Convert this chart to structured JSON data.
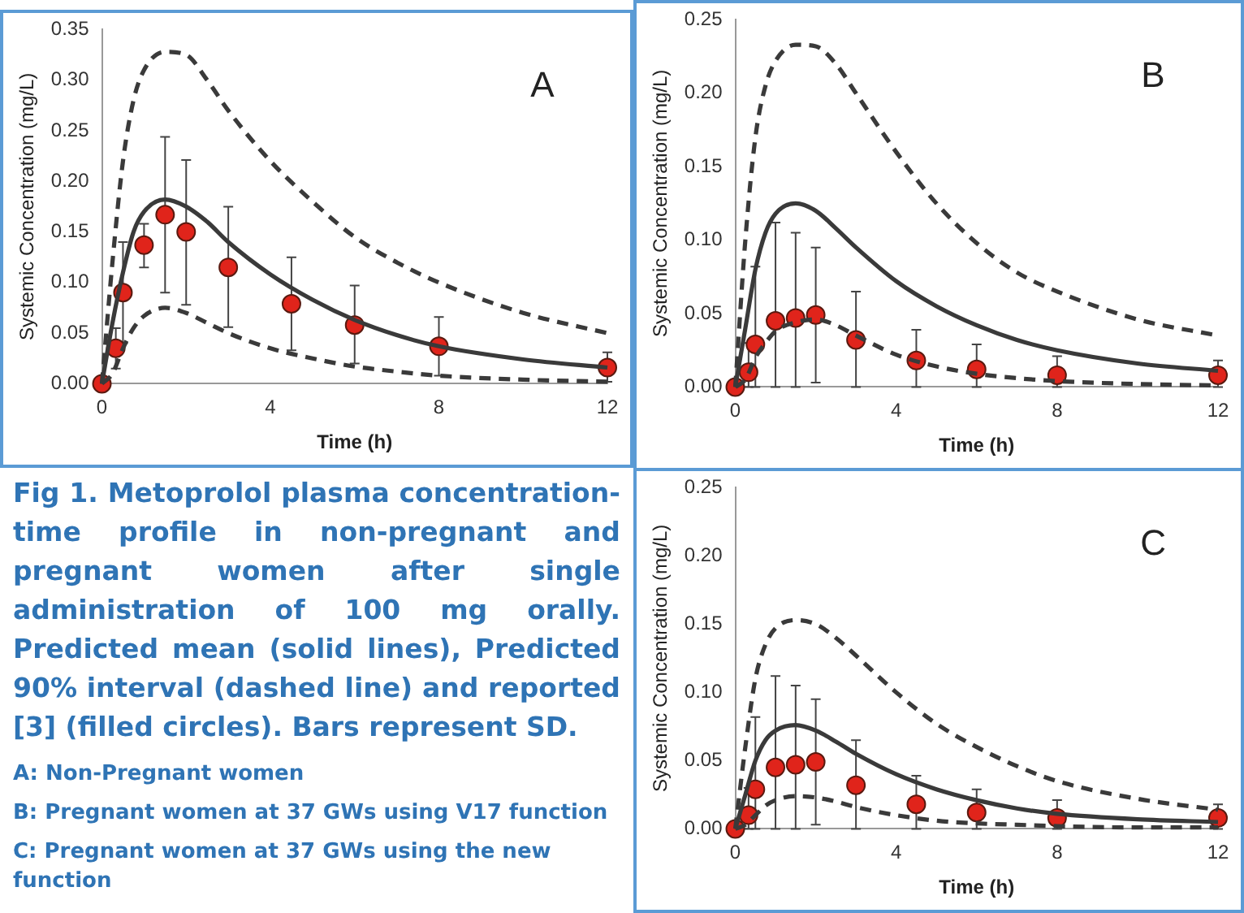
{
  "chart_data": [
    {
      "type": "line",
      "xlabel": "Time (h)",
      "ylabel": "Systemic Concentration (mg/L)",
      "annotations": [
        "A"
      ],
      "xlim": [
        0,
        12
      ],
      "xticks": [
        0,
        4,
        8,
        12
      ],
      "ylim": [
        0,
        0.35
      ],
      "yticks": [
        {
          "value": 0,
          "label": "0.00"
        },
        {
          "value": 0.05,
          "label": "0.05"
        },
        {
          "value": 0.1,
          "label": "0.10"
        },
        {
          "value": 0.15,
          "label": "0.15"
        },
        {
          "value": 0.2,
          "label": "0.20"
        },
        {
          "value": 0.25,
          "label": "0.25"
        },
        {
          "value": 0.3,
          "label": "0.30"
        },
        {
          "value": 0.35,
          "label": "0.35"
        }
      ],
      "grid": false,
      "legend": false,
      "series": [
        {
          "type": "line",
          "color": "#3a3a3a",
          "line_style": "solid",
          "marker": "none",
          "x": [
            0,
            0.25,
            0.5,
            0.75,
            1,
            1.5,
            2,
            2.5,
            3,
            4,
            5,
            6,
            7,
            8,
            10,
            12
          ],
          "values": [
            0,
            0.06,
            0.11,
            0.15,
            0.17,
            0.182,
            0.175,
            0.16,
            0.14,
            0.108,
            0.083,
            0.063,
            0.048,
            0.037,
            0.024,
            0.016
          ]
        },
        {
          "type": "line",
          "color": "#3a3a3a",
          "line_style": "dashed",
          "marker": "none",
          "x": [
            0,
            0.25,
            0.5,
            0.75,
            1,
            1.5,
            2,
            2.5,
            3,
            4,
            5,
            6,
            7,
            8,
            10,
            12
          ],
          "values": [
            0,
            0.12,
            0.22,
            0.28,
            0.31,
            0.328,
            0.325,
            0.3,
            0.27,
            0.22,
            0.18,
            0.145,
            0.12,
            0.1,
            0.07,
            0.05
          ]
        },
        {
          "type": "line",
          "color": "#3a3a3a",
          "line_style": "dashed",
          "marker": "none",
          "x": [
            0,
            0.25,
            0.5,
            0.75,
            1,
            1.5,
            2,
            2.5,
            3,
            4,
            5,
            6,
            7,
            8,
            10,
            12
          ],
          "values": [
            0,
            0.01,
            0.035,
            0.055,
            0.067,
            0.075,
            0.07,
            0.06,
            0.05,
            0.035,
            0.025,
            0.017,
            0.012,
            0.008,
            0.004,
            0.002
          ]
        },
        {
          "type": "scatter",
          "color": "#e0241b",
          "marker": "circle",
          "x": [
            0,
            0.33,
            0.5,
            1,
            1.5,
            2,
            3,
            4.5,
            6,
            8,
            12
          ],
          "values": [
            0,
            0.035,
            0.09,
            0.137,
            0.167,
            0.15,
            0.115,
            0.079,
            0.058,
            0.037,
            0.016
          ],
          "errors": [
            null,
            [
              0.015,
              0.055
            ],
            [
              0.04,
              0.14
            ],
            [
              0.115,
              0.158
            ],
            [
              0.09,
              0.244
            ],
            [
              0.078,
              0.221
            ],
            [
              0.056,
              0.175
            ],
            [
              0.033,
              0.125
            ],
            [
              0.02,
              0.097
            ],
            [
              0.008,
              0.066
            ],
            [
              0.002,
              0.031
            ]
          ]
        }
      ]
    },
    {
      "type": "line",
      "xlabel": "Time (h)",
      "ylabel": "Systemic Concentration (mg/L)",
      "annotations": [
        "B"
      ],
      "xlim": [
        0,
        12
      ],
      "xticks": [
        0,
        4,
        8,
        12
      ],
      "ylim": [
        0,
        0.25
      ],
      "yticks": [
        {
          "value": 0,
          "label": "0.00"
        },
        {
          "value": 0.05,
          "label": "0.05"
        },
        {
          "value": 0.1,
          "label": "0.10"
        },
        {
          "value": 0.15,
          "label": "0.15"
        },
        {
          "value": 0.2,
          "label": "0.20"
        },
        {
          "value": 0.25,
          "label": "0.25"
        }
      ],
      "grid": false,
      "legend": false,
      "series": [
        {
          "type": "line",
          "color": "#3a3a3a",
          "line_style": "solid",
          "marker": "none",
          "x": [
            0,
            0.25,
            0.5,
            0.75,
            1,
            1.5,
            2,
            2.5,
            3,
            4,
            5,
            6,
            7,
            8,
            10,
            12
          ],
          "values": [
            0,
            0.04,
            0.08,
            0.105,
            0.118,
            0.125,
            0.12,
            0.108,
            0.095,
            0.072,
            0.055,
            0.042,
            0.032,
            0.025,
            0.016,
            0.011
          ]
        },
        {
          "type": "line",
          "color": "#3a3a3a",
          "line_style": "dashed",
          "marker": "none",
          "x": [
            0,
            0.25,
            0.5,
            0.75,
            1,
            1.5,
            2,
            2.5,
            3,
            4,
            5,
            6,
            7,
            8,
            10,
            12
          ],
          "values": [
            0,
            0.1,
            0.17,
            0.205,
            0.222,
            0.233,
            0.232,
            0.22,
            0.2,
            0.16,
            0.125,
            0.098,
            0.078,
            0.065,
            0.046,
            0.035
          ]
        },
        {
          "type": "line",
          "color": "#3a3a3a",
          "line_style": "dashed",
          "marker": "none",
          "x": [
            0,
            0.25,
            0.5,
            0.75,
            1,
            1.5,
            2,
            2.5,
            3,
            4,
            5,
            6,
            7,
            8,
            10,
            12
          ],
          "values": [
            0,
            0.005,
            0.02,
            0.03,
            0.038,
            0.044,
            0.046,
            0.042,
            0.035,
            0.022,
            0.014,
            0.009,
            0.006,
            0.004,
            0.002,
            0.001
          ]
        },
        {
          "type": "scatter",
          "color": "#e0241b",
          "marker": "circle",
          "x": [
            0,
            0.33,
            0.5,
            1,
            1.5,
            2,
            3,
            4.5,
            6,
            8,
            12
          ],
          "values": [
            0,
            0.01,
            0.029,
            0.045,
            0.047,
            0.049,
            0.032,
            0.018,
            0.012,
            0.008,
            0.008
          ],
          "errors": [
            null,
            [
              0,
              0.03
            ],
            [
              0,
              0.082
            ],
            [
              0,
              0.112
            ],
            [
              0,
              0.105
            ],
            [
              0.003,
              0.095
            ],
            [
              0,
              0.065
            ],
            [
              0,
              0.039
            ],
            [
              0,
              0.029
            ],
            [
              0,
              0.021
            ],
            [
              0,
              0.018
            ]
          ]
        }
      ]
    },
    {
      "type": "other",
      "annotations": [
        "Fig 1. Metoprolol plasma concentration-time profile in non-pregnant and pregnant women after single administration of 100 mg orally. Predicted mean (solid lines), Predicted 90% interval (dashed line) and reported [3] (filled circles). Bars represent SD.",
        "A: Non-Pregnant women",
        "B: Pregnant women at 37 GWs using V17 function",
        "C: Pregnant women at 37 GWs using the new function"
      ]
    },
    {
      "type": "line",
      "xlabel": "Time (h)",
      "ylabel": "Systemic Concentration (mg/L)",
      "annotations": [
        "C"
      ],
      "xlim": [
        0,
        12
      ],
      "xticks": [
        0,
        4,
        8,
        12
      ],
      "ylim": [
        0,
        0.25
      ],
      "yticks": [
        {
          "value": 0,
          "label": "0.00"
        },
        {
          "value": 0.05,
          "label": "0.05"
        },
        {
          "value": 0.1,
          "label": "0.10"
        },
        {
          "value": 0.15,
          "label": "0.15"
        },
        {
          "value": 0.2,
          "label": "0.20"
        },
        {
          "value": 0.25,
          "label": "0.25"
        }
      ],
      "grid": false,
      "legend": false,
      "series": [
        {
          "type": "line",
          "color": "#3a3a3a",
          "line_style": "solid",
          "marker": "none",
          "x": [
            0,
            0.25,
            0.5,
            0.75,
            1,
            1.5,
            2,
            2.5,
            3,
            4,
            5,
            6,
            7,
            8,
            10,
            12
          ],
          "values": [
            0,
            0.025,
            0.05,
            0.065,
            0.072,
            0.076,
            0.072,
            0.064,
            0.055,
            0.04,
            0.029,
            0.021,
            0.015,
            0.011,
            0.007,
            0.005
          ]
        },
        {
          "type": "line",
          "color": "#3a3a3a",
          "line_style": "dashed",
          "marker": "none",
          "x": [
            0,
            0.25,
            0.5,
            0.75,
            1,
            1.5,
            2,
            2.5,
            3,
            4,
            5,
            6,
            7,
            8,
            10,
            12
          ],
          "values": [
            0,
            0.06,
            0.11,
            0.135,
            0.147,
            0.153,
            0.15,
            0.14,
            0.127,
            0.1,
            0.077,
            0.06,
            0.046,
            0.035,
            0.022,
            0.014
          ]
        },
        {
          "type": "line",
          "color": "#3a3a3a",
          "line_style": "dashed",
          "marker": "none",
          "x": [
            0,
            0.25,
            0.5,
            0.75,
            1,
            1.5,
            2,
            2.5,
            3,
            4,
            5,
            6,
            7,
            8,
            10,
            12
          ],
          "values": [
            0,
            0.003,
            0.01,
            0.017,
            0.021,
            0.024,
            0.023,
            0.02,
            0.016,
            0.01,
            0.006,
            0.004,
            0.003,
            0.002,
            0.001,
            0.001
          ]
        },
        {
          "type": "scatter",
          "color": "#e0241b",
          "marker": "circle",
          "x": [
            0,
            0.33,
            0.5,
            1,
            1.5,
            2,
            3,
            4.5,
            6,
            8,
            12
          ],
          "values": [
            0,
            0.01,
            0.029,
            0.045,
            0.047,
            0.049,
            0.032,
            0.018,
            0.012,
            0.008,
            0.008
          ],
          "errors": [
            null,
            [
              0,
              0.03
            ],
            [
              0,
              0.082
            ],
            [
              0,
              0.112
            ],
            [
              0,
              0.105
            ],
            [
              0.003,
              0.095
            ],
            [
              0,
              0.065
            ],
            [
              0,
              0.039
            ],
            [
              0,
              0.029
            ],
            [
              0,
              0.021
            ],
            [
              0,
              0.018
            ]
          ]
        }
      ]
    }
  ]
}
